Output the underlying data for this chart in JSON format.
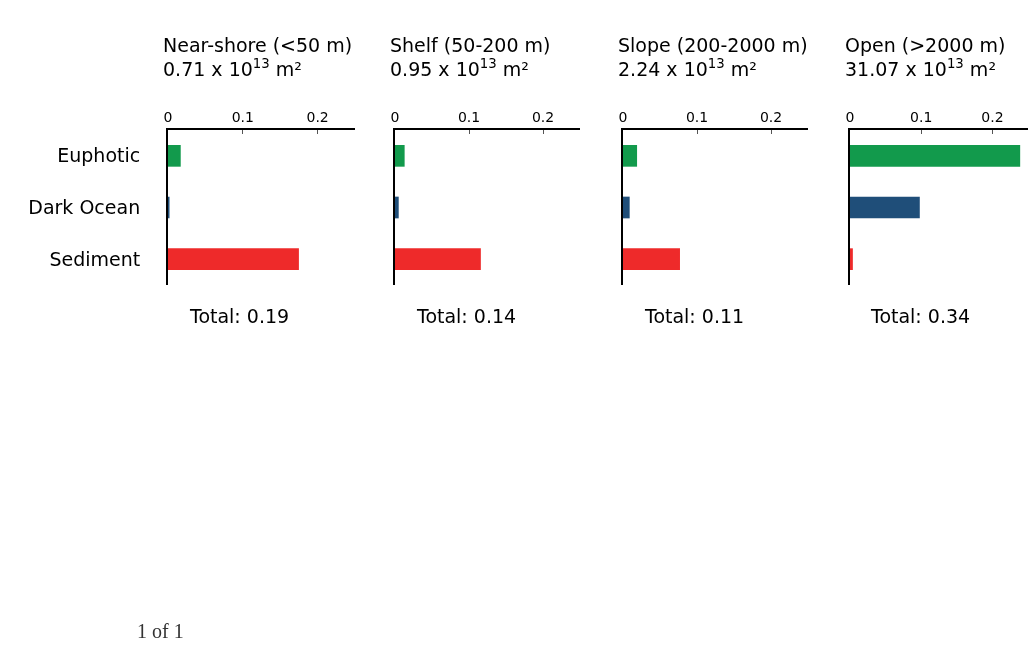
{
  "chart_data": [
    {
      "type": "bar",
      "orientation": "horizontal",
      "title": "Near-shore (<50 m)",
      "subtitle": "0.71 x 10$^{13}$ m²",
      "categories": [
        "Euphotic",
        "Dark Ocean",
        "Sediment"
      ],
      "values": [
        0.017,
        0.002,
        0.175
      ],
      "colors": [
        "#129a4c",
        "#1f4e79",
        "#ee2a2a"
      ],
      "xlim": [
        0,
        0.25
      ],
      "xticks": [
        0,
        0.1,
        0.2
      ],
      "grid": false,
      "annotations": [
        "Total: 0.19",
        "1 of 1"
      ]
    },
    {
      "type": "bar",
      "orientation": "horizontal",
      "title": "Shelf (50-200 m)",
      "subtitle": "0.95 x 10$^{13}$ m²",
      "categories": [
        null,
        null,
        null
      ],
      "values": [
        0.013,
        0.005,
        0.116
      ],
      "colors": [
        "#129a4c",
        "#1f4e79",
        "#ee2a2a"
      ],
      "xlim": [
        0,
        0.25
      ],
      "xticks": [
        0,
        0.1,
        0.2
      ],
      "grid": false,
      "tick_labels": "x",
      "annotations": [
        "Total: 0.14"
      ]
    },
    {
      "type": "bar",
      "orientation": "horizontal",
      "title": "Slope (200-2000 m)",
      "subtitle": "2.24 x 10$^{13}$ m²",
      "categories": [
        null,
        null,
        null
      ],
      "values": [
        0.019,
        0.009,
        0.077
      ],
      "colors": [
        "#129a4c",
        "#1f4e79",
        "#ee2a2a"
      ],
      "xlim": [
        0,
        0.25
      ],
      "xticks": [
        0,
        0.1,
        0.2
      ],
      "grid": false,
      "tick_labels": "x",
      "annotations": [
        "Total: 0.11"
      ]
    },
    {
      "type": "bar",
      "orientation": "horizontal",
      "title": "Open (>2000 m)",
      "subtitle": "31.07 x 10$^{13}$ m²",
      "categories": [
        null,
        null,
        null
      ],
      "values": [
        0.239,
        0.098,
        0.004
      ],
      "colors": [
        "#129a4c",
        "#1f4e79",
        "#ee2a2a"
      ],
      "xlim": [
        0,
        0.25
      ],
      "xticks": [
        0,
        0.1,
        0.2
      ],
      "grid": false,
      "tick_labels": "x",
      "annotations": [
        "Total: 0.34"
      ]
    }
  ]
}
